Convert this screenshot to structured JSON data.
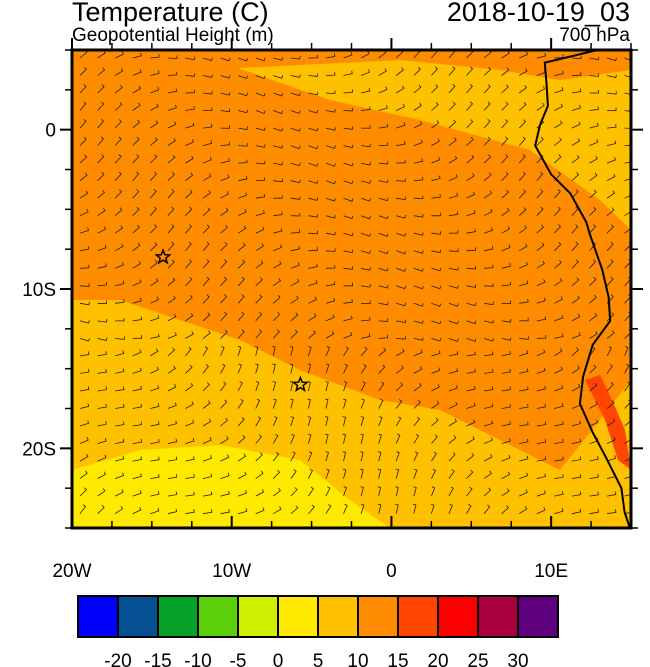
{
  "header": {
    "title": "Temperature (C)",
    "subtitle": "Geopotential Height (m)",
    "datetime": "2018-10-19_03",
    "level": "700 hPa"
  },
  "map": {
    "lon_range": [
      -20,
      15
    ],
    "lat_range": [
      -25,
      5
    ],
    "x_ticks": [
      {
        "value": -20,
        "label": "20W"
      },
      {
        "value": -10,
        "label": "10W"
      },
      {
        "value": 0,
        "label": "0"
      },
      {
        "value": 10,
        "label": "10E"
      }
    ],
    "y_ticks": [
      {
        "value": 0,
        "label": "0"
      },
      {
        "value": -10,
        "label": "10S"
      },
      {
        "value": -20,
        "label": "20S"
      }
    ],
    "markers": [
      {
        "name": "star",
        "lon": -14.3,
        "lat": -8
      },
      {
        "name": "star",
        "lon": -5.7,
        "lat": -16
      }
    ],
    "fill_colors": {
      "base": "#ffc000",
      "band": "#ff8c00",
      "warm": "#ff4500",
      "cool": "#ffe900"
    }
  },
  "colorbar": {
    "colors": [
      "#0000ff",
      "#045092",
      "#07a12a",
      "#5dcf0a",
      "#cff000",
      "#ffe900",
      "#ffc000",
      "#ff8c00",
      "#ff4500",
      "#fa0000",
      "#a8003f",
      "#5e007e"
    ],
    "labels": [
      "-20",
      "-15",
      "-10",
      "-5",
      "0",
      "5",
      "10",
      "15",
      "20",
      "25",
      "30"
    ]
  }
}
